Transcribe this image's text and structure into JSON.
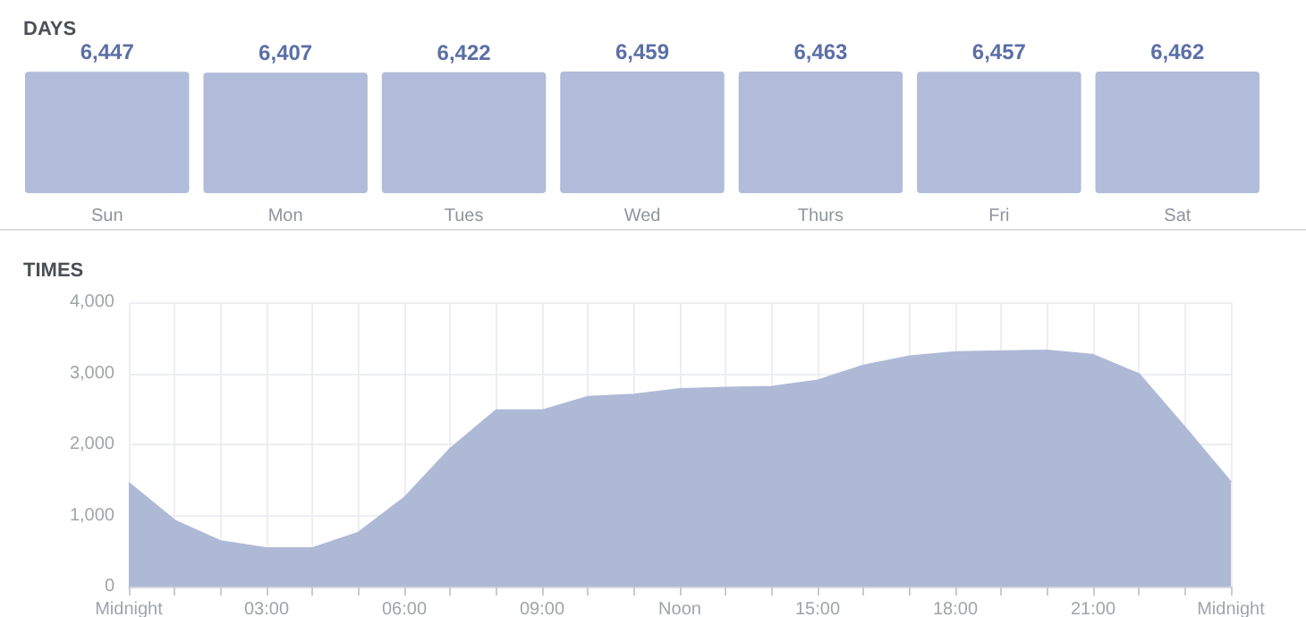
{
  "chart_data": [
    {
      "type": "bar",
      "title": "DAYS",
      "categories": [
        "Sun",
        "Mon",
        "Tues",
        "Wed",
        "Thurs",
        "Fri",
        "Sat"
      ],
      "values": [
        6447,
        6407,
        6422,
        6459,
        6463,
        6457,
        6462
      ],
      "value_labels": [
        "6,447",
        "6,407",
        "6,422",
        "6,459",
        "6,463",
        "6,457",
        "6,462"
      ],
      "color": "#b0bcd9",
      "tick_labels": "x",
      "grid": false
    },
    {
      "type": "area",
      "title": "TIMES",
      "x": [
        0,
        1,
        2,
        3,
        4,
        5,
        6,
        7,
        8,
        9,
        10,
        11,
        12,
        13,
        14,
        15,
        16,
        17,
        18,
        19,
        20,
        21,
        22,
        23,
        24
      ],
      "values": [
        1460,
        930,
        640,
        540,
        540,
        760,
        1250,
        1940,
        2480,
        2480,
        2670,
        2700,
        2780,
        2800,
        2810,
        2900,
        3110,
        3240,
        3300,
        3310,
        3320,
        3260,
        2990,
        2240,
        1470
      ],
      "color": "#aeb9d6",
      "marker": "none",
      "grid": true,
      "xlim": [
        0,
        24
      ],
      "xticks": [
        {
          "value": 0,
          "label": "Midnight"
        },
        {
          "value": 1,
          "label": null
        },
        {
          "value": 2,
          "label": null
        },
        {
          "value": 3,
          "label": "03:00"
        },
        {
          "value": 4,
          "label": null
        },
        {
          "value": 5,
          "label": null
        },
        {
          "value": 6,
          "label": "06:00"
        },
        {
          "value": 7,
          "label": null
        },
        {
          "value": 8,
          "label": null
        },
        {
          "value": 9,
          "label": "09:00"
        },
        {
          "value": 10,
          "label": null
        },
        {
          "value": 11,
          "label": null
        },
        {
          "value": 12,
          "label": "Noon"
        },
        {
          "value": 13,
          "label": null
        },
        {
          "value": 14,
          "label": null
        },
        {
          "value": 15,
          "label": "15:00"
        },
        {
          "value": 16,
          "label": null
        },
        {
          "value": 17,
          "label": null
        },
        {
          "value": 18,
          "label": "18:00"
        },
        {
          "value": 19,
          "label": null
        },
        {
          "value": 20,
          "label": null
        },
        {
          "value": 21,
          "label": "21:00"
        },
        {
          "value": 22,
          "label": null
        },
        {
          "value": 23,
          "label": null
        },
        {
          "value": 24,
          "label": "Midnight"
        }
      ],
      "ylim": [
        0,
        4000
      ],
      "yticks": [
        0,
        {
          "value": 1000,
          "label": "1,000"
        },
        {
          "value": 2000,
          "label": "2,000"
        },
        {
          "value": 3000,
          "label": "3,000"
        },
        {
          "value": 4000,
          "label": "4,000"
        }
      ]
    }
  ]
}
